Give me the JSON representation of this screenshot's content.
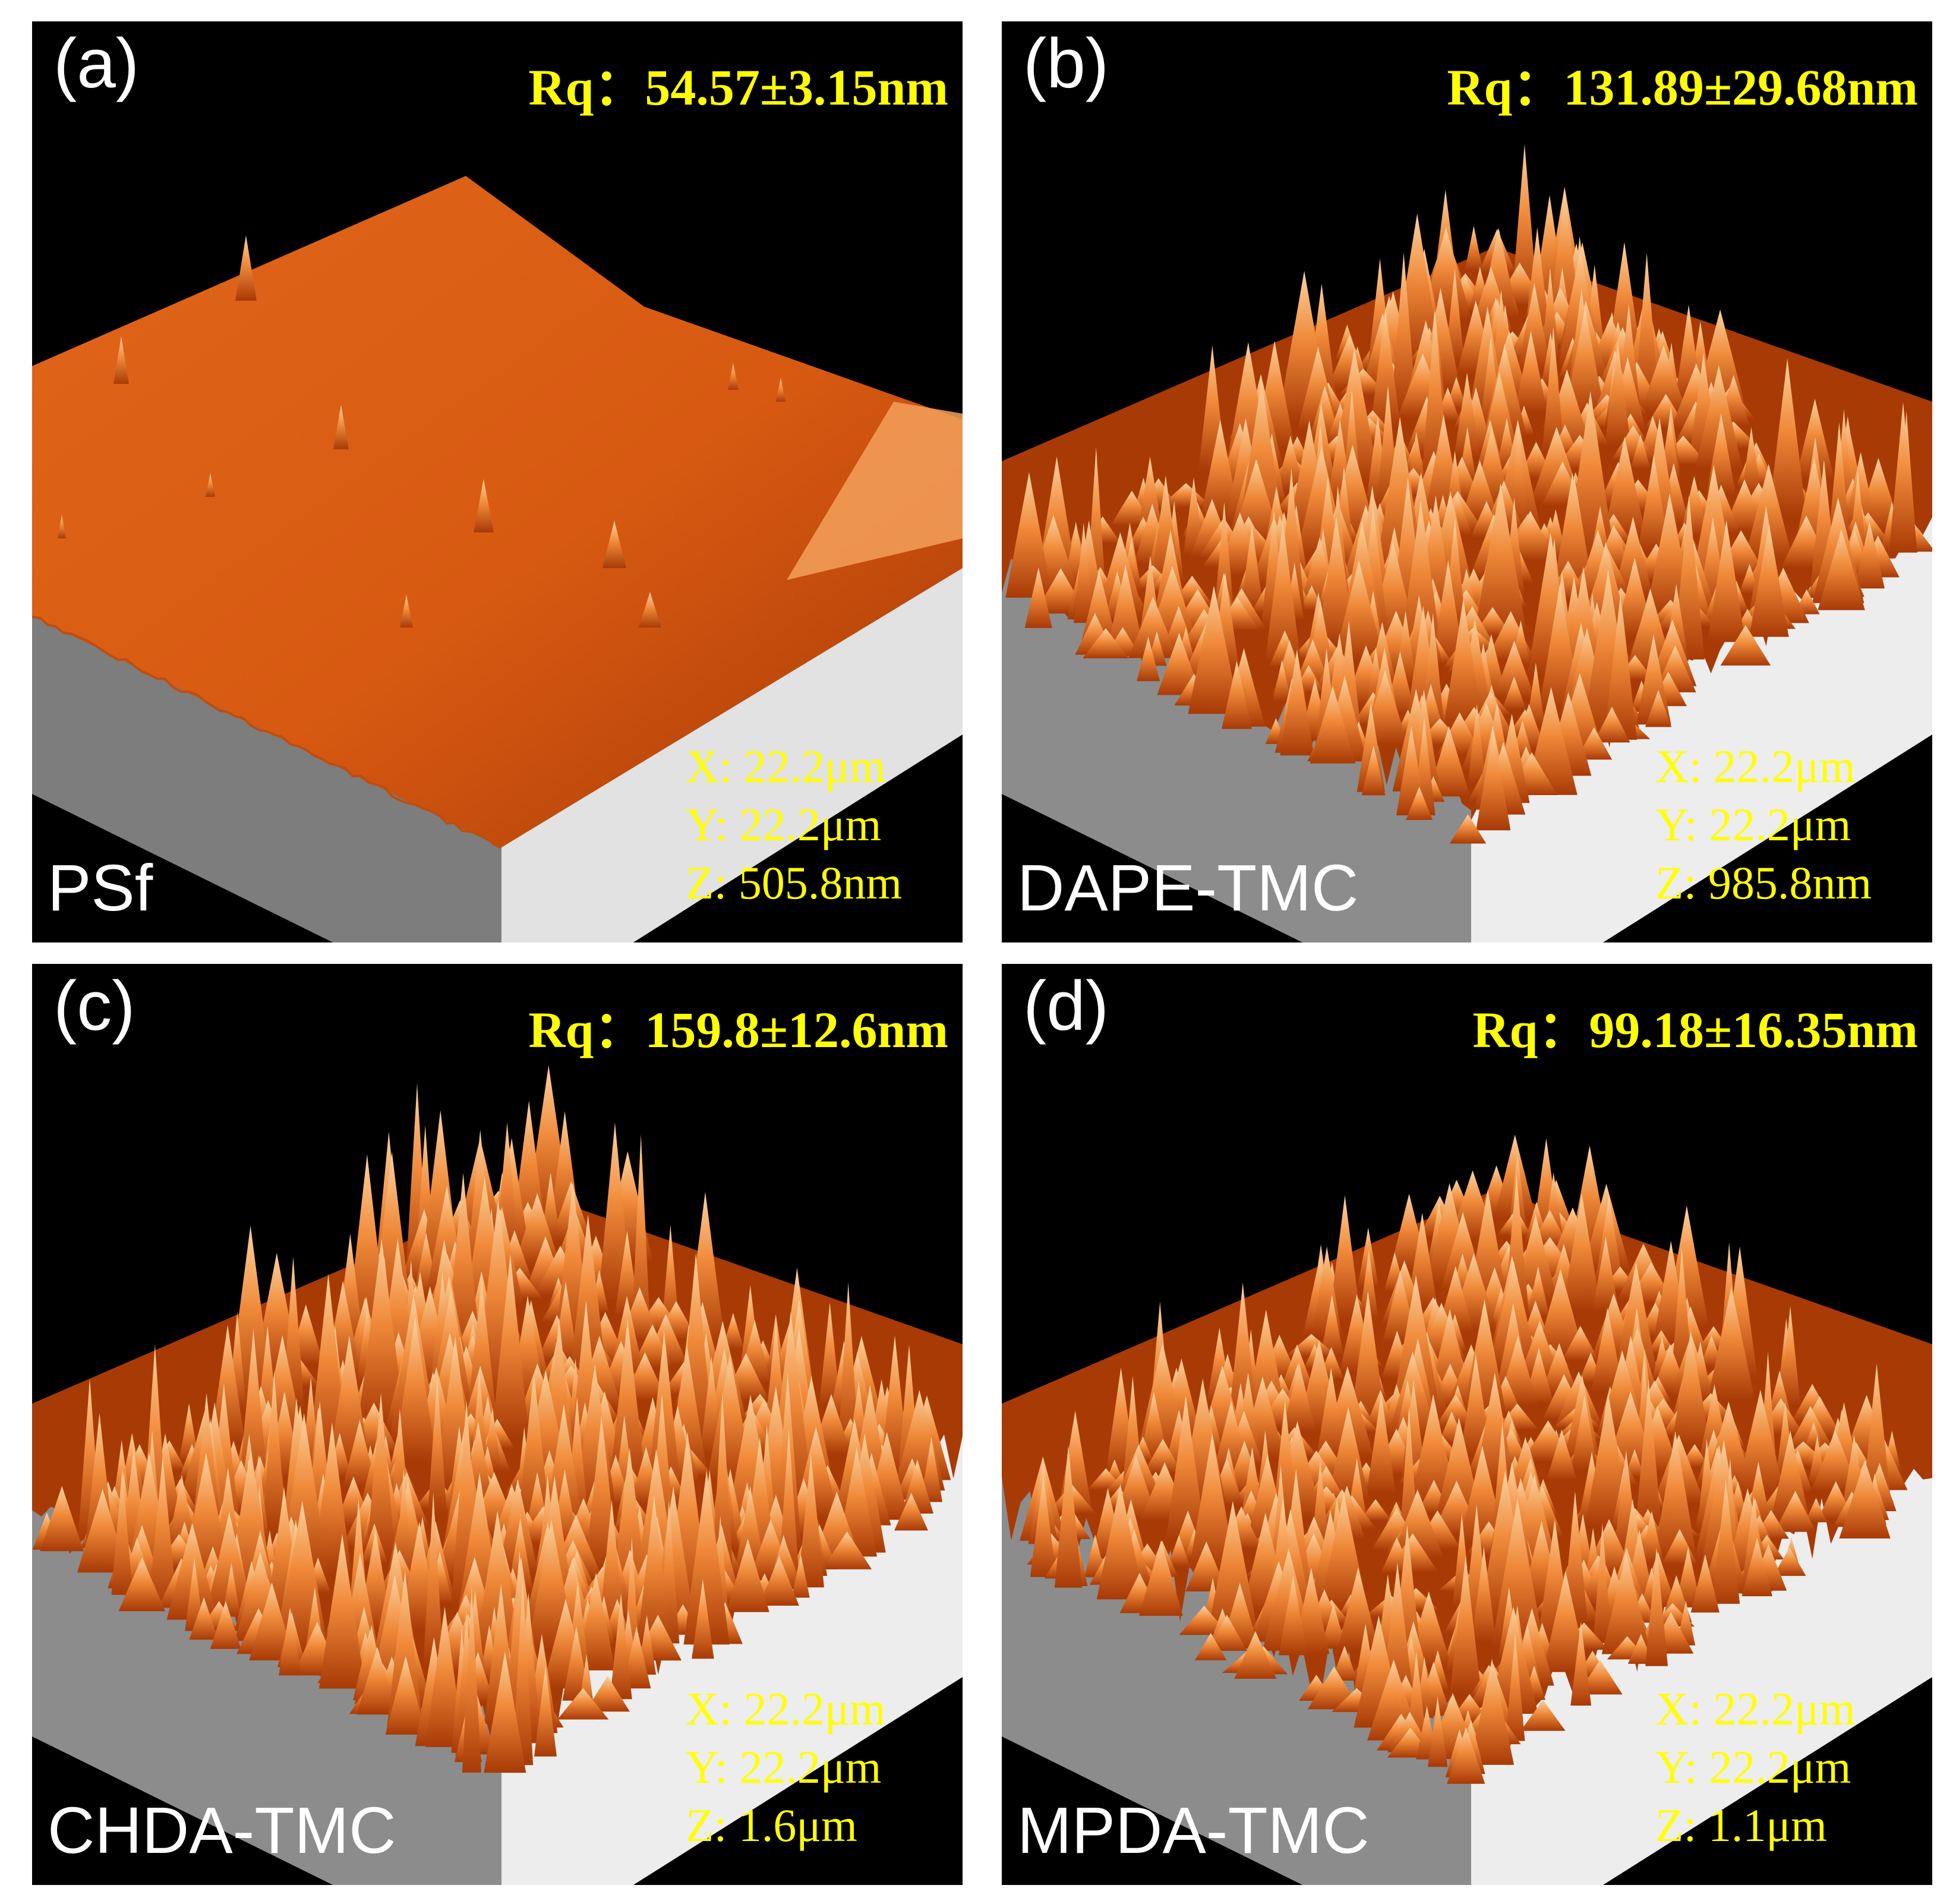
{
  "panels": [
    {
      "letter": "(a)",
      "rq": "Rq：54.57±3.15nm",
      "sample": "PSf",
      "x_scale": "X: 22.2μm",
      "y_scale": "Y: 22.2μm",
      "z_scale": "Z: 505.8nm"
    },
    {
      "letter": "(b)",
      "rq": "Rq：131.89±29.68nm",
      "sample": "DAPE-TMC",
      "x_scale": "X: 22.2μm",
      "y_scale": "Y: 22.2μm",
      "z_scale": "Z: 985.8nm"
    },
    {
      "letter": "(c)",
      "rq": "Rq：159.8±12.6nm",
      "sample": "CHDA-TMC",
      "x_scale": "X: 22.2μm",
      "y_scale": "Y: 22.2μm",
      "z_scale": "Z: 1.6μm"
    },
    {
      "letter": "(d)",
      "rq": "Rq：99.18±16.35nm",
      "sample": "MPDA-TMC",
      "x_scale": "X: 22.2μm",
      "y_scale": "Y: 22.2μm",
      "z_scale": "Z: 1.1μm"
    }
  ],
  "colors": {
    "background": "#000000",
    "surface_dark": "#a83a06",
    "surface_mid": "#e0661a",
    "surface_light": "#fbd3a0",
    "base_side_dark": "#7d7d7d",
    "base_side_light": "#e2e2e2",
    "label_yellow": "#ffff00",
    "label_white": "#ffffff"
  }
}
